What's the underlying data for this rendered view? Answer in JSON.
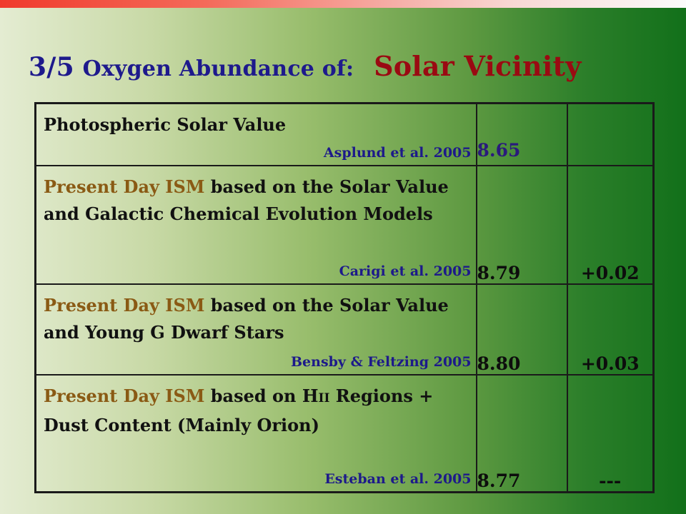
{
  "title": {
    "number": "3/5",
    "text": "Oxygen Abundance of:",
    "subject": "Solar Vicinity"
  },
  "rows": [
    {
      "desc_plain": "Photospheric Solar Value",
      "highlight": "",
      "desc_rest": "",
      "ref": "Asplund et al. 2005",
      "value": "8.65",
      "error": ""
    },
    {
      "highlight": "Present Day ISM",
      "desc_rest": " based on the Solar Value and Galactic Chemical Evolution Models",
      "ref": "Carigi et al. 2005",
      "value": "8.79",
      "error": "+0.02"
    },
    {
      "highlight": "Present Day ISM",
      "desc_rest": " based on the Solar Value and Young G Dwarf Stars",
      "ref": "Bensby & Feltzing 2005",
      "value": "8.80",
      "error": "+0.03"
    },
    {
      "highlight": "Present Day ISM",
      "desc_pre": " based on H",
      "desc_sc": "II",
      "desc_post": " Regions + Dust Content (Mainly Orion)",
      "ref": "Esteban et al. 2005",
      "value": "8.77",
      "error": "---"
    }
  ]
}
